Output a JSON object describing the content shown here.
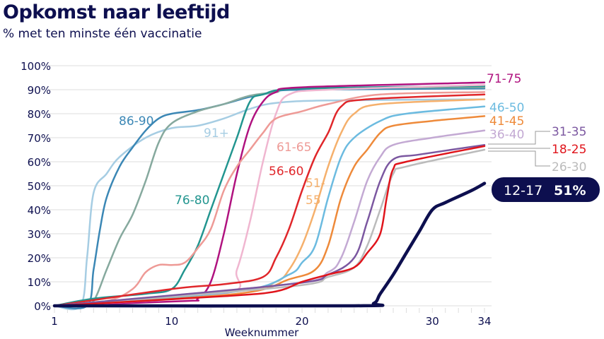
{
  "chart_data": {
    "type": "line",
    "title": "Opkomst naar leeftijd",
    "subtitle": "% met ten minste één vaccinatie",
    "xlabel": "Weeknummer",
    "ylabel": "",
    "xlim": [
      1,
      34
    ],
    "ylim": [
      0,
      100
    ],
    "xticks": [
      1,
      10,
      20,
      30,
      34
    ],
    "yticks": [
      "0%",
      "10%",
      "20%",
      "30%",
      "40%",
      "50%",
      "60%",
      "70%",
      "80%",
      "90%",
      "100%"
    ],
    "grid": true,
    "series": [
      {
        "name": "91+",
        "color": "#a6cde3",
        "points": [
          [
            1,
            0
          ],
          [
            3,
            0
          ],
          [
            3.5,
            20
          ],
          [
            4,
            47
          ],
          [
            5,
            55
          ],
          [
            6,
            62
          ],
          [
            8,
            70
          ],
          [
            10,
            74
          ],
          [
            12,
            75
          ],
          [
            14,
            78
          ],
          [
            16,
            82
          ],
          [
            18,
            84.5
          ],
          [
            22,
            85.5
          ],
          [
            34,
            86
          ]
        ]
      },
      {
        "name": "86-90",
        "color": "#3b87b5",
        "points": [
          [
            1,
            0
          ],
          [
            3.5,
            0
          ],
          [
            4,
            15
          ],
          [
            4.5,
            32
          ],
          [
            5,
            45
          ],
          [
            6,
            58
          ],
          [
            7,
            66
          ],
          [
            8,
            73
          ],
          [
            9,
            78
          ],
          [
            10,
            80
          ],
          [
            12,
            81.5
          ],
          [
            14,
            84
          ],
          [
            16,
            87
          ],
          [
            18,
            89
          ],
          [
            20,
            90
          ],
          [
            34,
            90.5
          ]
        ]
      },
      {
        "name": "",
        "color": "#86a99e",
        "points": [
          [
            1,
            0
          ],
          [
            3,
            0
          ],
          [
            4,
            2
          ],
          [
            5,
            15
          ],
          [
            6,
            28
          ],
          [
            7,
            38
          ],
          [
            8,
            52
          ],
          [
            9,
            68
          ],
          [
            10,
            76
          ],
          [
            12,
            81
          ],
          [
            14,
            84
          ],
          [
            16,
            87.5
          ],
          [
            18,
            89
          ],
          [
            20,
            90.5
          ],
          [
            34,
            91
          ]
        ]
      },
      {
        "name": "76-80",
        "color": "#22958f",
        "points": [
          [
            1,
            0
          ],
          [
            4,
            3
          ],
          [
            8,
            5
          ],
          [
            10,
            7
          ],
          [
            11,
            15
          ],
          [
            12,
            25
          ],
          [
            13,
            40
          ],
          [
            14,
            55
          ],
          [
            15,
            70
          ],
          [
            16,
            85
          ],
          [
            17,
            88
          ],
          [
            20,
            90.5
          ],
          [
            34,
            91.5
          ]
        ]
      },
      {
        "name": "71-75",
        "color": "#b0127f",
        "points": [
          [
            1,
            0
          ],
          [
            11,
            2
          ],
          [
            12,
            3
          ],
          [
            13,
            10
          ],
          [
            14,
            30
          ],
          [
            15,
            55
          ],
          [
            16,
            75
          ],
          [
            17,
            85
          ],
          [
            18,
            89
          ],
          [
            20,
            91
          ],
          [
            34,
            93
          ]
        ]
      },
      {
        "name": "",
        "color": "#f0b6d0",
        "points": [
          [
            1,
            0
          ],
          [
            14,
            5
          ],
          [
            15,
            15
          ],
          [
            16,
            35
          ],
          [
            17,
            60
          ],
          [
            18,
            80
          ],
          [
            19,
            88
          ],
          [
            22,
            90
          ],
          [
            34,
            92
          ]
        ]
      },
      {
        "name": "61-65",
        "color": "#ee9a96",
        "points": [
          [
            1,
            0
          ],
          [
            5,
            2
          ],
          [
            7,
            7
          ],
          [
            8,
            14
          ],
          [
            9,
            17
          ],
          [
            10,
            17
          ],
          [
            11,
            18
          ],
          [
            12,
            24
          ],
          [
            13,
            32
          ],
          [
            14,
            48
          ],
          [
            15,
            58
          ],
          [
            16,
            65
          ],
          [
            17,
            72
          ],
          [
            18,
            78
          ],
          [
            20,
            81
          ],
          [
            22,
            84
          ],
          [
            26,
            88
          ],
          [
            34,
            89
          ]
        ]
      },
      {
        "name": "56-60",
        "color": "#e0262a",
        "points": [
          [
            1,
            0
          ],
          [
            10,
            7
          ],
          [
            14,
            9
          ],
          [
            17,
            12
          ],
          [
            18,
            20
          ],
          [
            19,
            32
          ],
          [
            20,
            48
          ],
          [
            21,
            62
          ],
          [
            22,
            72
          ],
          [
            23,
            83
          ],
          [
            25,
            86
          ],
          [
            34,
            88
          ]
        ]
      },
      {
        "name": "51-55",
        "color": "#f5b06c",
        "points": [
          [
            1,
            0
          ],
          [
            15,
            6
          ],
          [
            18,
            10
          ],
          [
            19,
            15
          ],
          [
            20,
            25
          ],
          [
            21,
            40
          ],
          [
            22,
            58
          ],
          [
            23,
            72
          ],
          [
            24,
            80
          ],
          [
            26,
            84
          ],
          [
            34,
            86
          ]
        ]
      },
      {
        "name": "46-50",
        "color": "#6cbbe0",
        "points": [
          [
            1,
            0
          ],
          [
            15,
            6
          ],
          [
            19,
            13
          ],
          [
            20,
            18
          ],
          [
            21,
            25
          ],
          [
            22,
            45
          ],
          [
            23,
            62
          ],
          [
            24,
            70
          ],
          [
            26,
            77
          ],
          [
            28,
            80
          ],
          [
            34,
            83
          ]
        ]
      },
      {
        "name": "41-45",
        "color": "#ee8a3a",
        "points": [
          [
            1,
            0
          ],
          [
            15,
            5
          ],
          [
            19,
            11
          ],
          [
            21,
            15
          ],
          [
            22,
            25
          ],
          [
            23,
            45
          ],
          [
            24,
            58
          ],
          [
            25,
            65
          ],
          [
            26,
            72
          ],
          [
            27,
            75
          ],
          [
            30,
            77
          ],
          [
            34,
            79
          ]
        ]
      },
      {
        "name": "36-40",
        "color": "#c3a9d3",
        "points": [
          [
            1,
            0
          ],
          [
            19,
            9
          ],
          [
            22,
            14
          ],
          [
            23,
            20
          ],
          [
            24,
            35
          ],
          [
            25,
            52
          ],
          [
            26,
            62
          ],
          [
            27,
            67
          ],
          [
            30,
            70
          ],
          [
            34,
            73
          ]
        ]
      },
      {
        "name": "26-30",
        "color": "#bbbbbb",
        "points": [
          [
            1,
            0
          ],
          [
            19,
            8
          ],
          [
            22,
            12
          ],
          [
            24,
            16
          ],
          [
            25,
            25
          ],
          [
            26,
            40
          ],
          [
            27,
            55
          ],
          [
            28,
            58
          ],
          [
            34,
            65
          ]
        ]
      },
      {
        "name": "31-35",
        "color": "#7b57a0",
        "points": [
          [
            1,
            0
          ],
          [
            19,
            9
          ],
          [
            22,
            13
          ],
          [
            24,
            20
          ],
          [
            25,
            35
          ],
          [
            26,
            52
          ],
          [
            27,
            61
          ],
          [
            29,
            63
          ],
          [
            34,
            67
          ]
        ]
      },
      {
        "name": "18-25",
        "color": "#e0141b",
        "points": [
          [
            1,
            0
          ],
          [
            14,
            4
          ],
          [
            18,
            6
          ],
          [
            20,
            10
          ],
          [
            22,
            13
          ],
          [
            24,
            16
          ],
          [
            25,
            22
          ],
          [
            26,
            30
          ],
          [
            26.5,
            45
          ],
          [
            27,
            57
          ],
          [
            28,
            60
          ],
          [
            34,
            66.5
          ]
        ]
      },
      {
        "name": "12-17",
        "color": "#0d0f4f",
        "points": [
          [
            1,
            0
          ],
          [
            24,
            0
          ],
          [
            25.5,
            1
          ],
          [
            26,
            5
          ],
          [
            27,
            13
          ],
          [
            28,
            22
          ],
          [
            29,
            31
          ],
          [
            30,
            40
          ],
          [
            31,
            43
          ],
          [
            33,
            48
          ],
          [
            34,
            51
          ]
        ]
      }
    ],
    "annotations": {
      "badge_label": "12-17",
      "badge_value": "51%",
      "label_51_line1": "51-",
      "label_51_line2": "55"
    }
  }
}
